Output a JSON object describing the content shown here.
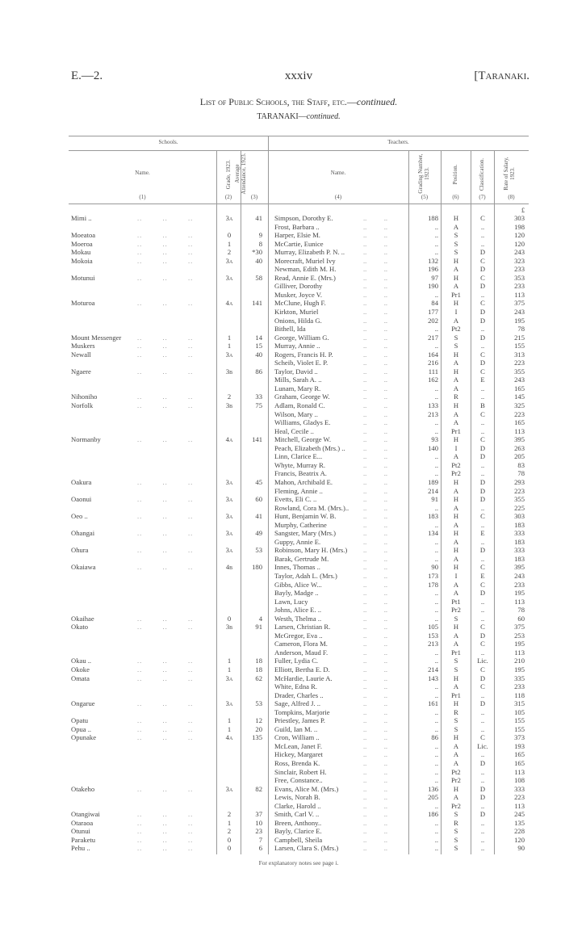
{
  "header": {
    "page_id": "E.—2.",
    "page_number": "xxxiv",
    "section": "[Taranaki."
  },
  "title": {
    "main": "List of Public Schools, the Staff, etc.—",
    "main_em": "continued.",
    "sub": "TARANAKI—",
    "sub_em": "continued."
  },
  "columns": {
    "schools_group": "Schools.",
    "teachers_group": "Teachers.",
    "school_name": "Name.",
    "grade": "Grade, 1923.",
    "attendance": "Average Attendance, 1923.",
    "teacher_name": "Name.",
    "grading": "Grading Number, 1923.",
    "position": "Position.",
    "classification": "Classification.",
    "salary": "Rate of Salary, 1923.",
    "nums": [
      "(1)",
      "(2)",
      "(3)",
      "(4)",
      "(5)",
      "(6)",
      "(7)",
      "(8)"
    ],
    "currency": "£"
  },
  "rows": [
    [
      "Mimi ..",
      "3A",
      "41",
      "Simpson, Dorothy E.",
      "188",
      "H",
      "C",
      "303"
    ],
    [
      "",
      "",
      "",
      "Frost, Barbara ..",
      "..",
      "A",
      "..",
      "198"
    ],
    [
      "Moeatoa",
      "0",
      "9",
      "Harper, Elsie M.",
      "..",
      "S",
      "..",
      "120"
    ],
    [
      "Moeroa",
      "1",
      "8",
      "McCartie, Eunice",
      "..",
      "S",
      "..",
      "120"
    ],
    [
      "Mokau",
      "2",
      "*30",
      "Murray, Elizabeth P. N. ..",
      "..",
      "S",
      "D",
      "243"
    ],
    [
      "Mokoia",
      "3A",
      "40",
      "Morecraft, Muriel Ivy",
      "132",
      "H",
      "C",
      "323"
    ],
    [
      "",
      "",
      "",
      "Newman, Edith M. H.",
      "196",
      "A",
      "D",
      "233"
    ],
    [
      "Motunui",
      "3A",
      "58",
      "Read, Annie E. (Mrs.)",
      "97",
      "H",
      "C",
      "353"
    ],
    [
      "",
      "",
      "",
      "Gilliver, Dorothy",
      "190",
      "A",
      "D",
      "233"
    ],
    [
      "",
      "",
      "",
      "Musker, Joyce V.",
      "..",
      "Pr1",
      "..",
      "113"
    ],
    [
      "Moturoa",
      "4A",
      "141",
      "McClune, Hugh F.",
      "84",
      "H",
      "C",
      "375"
    ],
    [
      "",
      "",
      "",
      "Kirkton, Muriel",
      "177",
      "I",
      "D",
      "243"
    ],
    [
      "",
      "",
      "",
      "Onions, Hilda G.",
      "202",
      "A",
      "D",
      "195"
    ],
    [
      "",
      "",
      "",
      "Bithell, Ida",
      "..",
      "Pt2",
      "..",
      "78"
    ],
    [
      "Mount Messenger",
      "1",
      "14",
      "George, William G.",
      "217",
      "S",
      "D",
      "215"
    ],
    [
      "Muskers",
      "1",
      "15",
      "Murray, Annie ..",
      "..",
      "S",
      "..",
      "155"
    ],
    [
      "Newall",
      "3A",
      "40",
      "Rogers, Francis H. P.",
      "164",
      "H",
      "C",
      "313"
    ],
    [
      "",
      "",
      "",
      "Scheib, Violet E. P.",
      "216",
      "A",
      "D",
      "223"
    ],
    [
      "Ngaere",
      "3B",
      "86",
      "Taylor, David ..",
      "111",
      "H",
      "C",
      "355"
    ],
    [
      "",
      "",
      "",
      "Mills, Sarah A. ..",
      "162",
      "A",
      "E",
      "243"
    ],
    [
      "",
      "",
      "",
      "Lunam, Mary R.",
      "..",
      "A",
      "..",
      "165"
    ],
    [
      "Nihoniho",
      "2",
      "33",
      "Graham, George W.",
      "..",
      "R",
      "..",
      "145"
    ],
    [
      "Norfolk",
      "3B",
      "75",
      "Adlam, Ronald C.",
      "133",
      "H",
      "B",
      "325"
    ],
    [
      "",
      "",
      "",
      "Wilson, Mary ..",
      "213",
      "A",
      "C",
      "223"
    ],
    [
      "",
      "",
      "",
      "Williams, Gladys E.",
      "..",
      "A",
      "..",
      "165"
    ],
    [
      "",
      "",
      "",
      "Heal, Cecile ..",
      "..",
      "Pr1",
      "..",
      "113"
    ],
    [
      "Normanby",
      "4A",
      "141",
      "Mitchell, George W.",
      "93",
      "H",
      "C",
      "395"
    ],
    [
      "",
      "",
      "",
      "Peach, Elizabeth (Mrs.) ..",
      "140",
      "I",
      "D",
      "263"
    ],
    [
      "",
      "",
      "",
      "Linn, Clarice E...",
      "..",
      "A",
      "D",
      "205"
    ],
    [
      "",
      "",
      "",
      "Whyte, Murray R.",
      "..",
      "Pt2",
      "..",
      "83"
    ],
    [
      "",
      "",
      "",
      "Francis, Beatrix A.",
      "..",
      "Pr2",
      "..",
      "78"
    ],
    [
      "Oakura",
      "3A",
      "45",
      "Mahon, Archibald E.",
      "189",
      "H",
      "D",
      "293"
    ],
    [
      "",
      "",
      "",
      "Fleming, Annie ..",
      "214",
      "A",
      "D",
      "223"
    ],
    [
      "Oaonui",
      "3A",
      "60",
      "Evetts, Eli C. ..",
      "91",
      "H",
      "D",
      "355"
    ],
    [
      "",
      "",
      "",
      "Rowland, Cora M. (Mrs.)..",
      "..",
      "A",
      "..",
      "225"
    ],
    [
      "Oeo ..",
      "3A",
      "41",
      "Hunt, Benjamin W. B.",
      "183",
      "H",
      "C",
      "303"
    ],
    [
      "",
      "",
      "",
      "Murphy, Catherine",
      "..",
      "A",
      "..",
      "183"
    ],
    [
      "Ohangai",
      "3A",
      "49",
      "Sangster, Mary (Mrs.)",
      "134",
      "H",
      "E",
      "333"
    ],
    [
      "",
      "",
      "",
      "Guppy, Annie E.",
      "..",
      "A",
      "..",
      "183"
    ],
    [
      "Ohura",
      "3A",
      "53",
      "Robinson, Mary H. (Mrs.)",
      "..",
      "H",
      "D",
      "333"
    ],
    [
      "",
      "",
      "",
      "Barak, Gertrude M.",
      "..",
      "A",
      "..",
      "183"
    ],
    [
      "Okaiawa",
      "4B",
      "180",
      "Innes, Thomas ..",
      "90",
      "H",
      "C",
      "395"
    ],
    [
      "",
      "",
      "",
      "Taylor, Adah L. (Mrs.)",
      "173",
      "I",
      "E",
      "243"
    ],
    [
      "",
      "",
      "",
      "Gibbs, Alice W...",
      "178",
      "A",
      "C",
      "233"
    ],
    [
      "",
      "",
      "",
      "Bayly, Madge ..",
      "..",
      "A",
      "D",
      "195"
    ],
    [
      "",
      "",
      "",
      "Lawn, Lucy",
      "..",
      "Pt1",
      "..",
      "113"
    ],
    [
      "",
      "",
      "",
      "Johns, Alice E. ..",
      "..",
      "Pr2",
      "..",
      "78"
    ],
    [
      "Okaihae",
      "0",
      "4",
      "Westh, Thelma ..",
      "..",
      "S",
      "..",
      "60"
    ],
    [
      "Okato",
      "3B",
      "91",
      "Larsen, Christian R.",
      "105",
      "H",
      "C",
      "375"
    ],
    [
      "",
      "",
      "",
      "McGregor, Eva ..",
      "153",
      "A",
      "D",
      "253"
    ],
    [
      "",
      "",
      "",
      "Cameron, Flora M.",
      "213",
      "A",
      "C",
      "195"
    ],
    [
      "",
      "",
      "",
      "Anderson, Maud F.",
      "..",
      "Pr1",
      "..",
      "113"
    ],
    [
      "Okau ..",
      "1",
      "18",
      "Fuller, Lydia C.",
      "..",
      "S",
      "Lic.",
      "210"
    ],
    [
      "Okoke",
      "1",
      "18",
      "Elliott, Bertha E. D.",
      "214",
      "S",
      "C",
      "195"
    ],
    [
      "Omata",
      "3A",
      "62",
      "McHardie, Laurie A.",
      "143",
      "H",
      "D",
      "335"
    ],
    [
      "",
      "",
      "",
      "White, Edna R.",
      "..",
      "A",
      "C",
      "233"
    ],
    [
      "",
      "",
      "",
      "Drader, Charles ..",
      "..",
      "Pr1",
      "..",
      "118"
    ],
    [
      "Ongarue",
      "3A",
      "53",
      "Sage, Alfred J. ..",
      "161",
      "H",
      "D",
      "315"
    ],
    [
      "",
      "",
      "",
      "Tompkins, Marjorie",
      "..",
      "R",
      "..",
      "105"
    ],
    [
      "Opatu",
      "1",
      "12",
      "Priestley, James P.",
      "..",
      "S",
      "..",
      "155"
    ],
    [
      "Opua ..",
      "1",
      "20",
      "Guild, Ian M. ..",
      "..",
      "S",
      "..",
      "155"
    ],
    [
      "Opunake",
      "4A",
      "135",
      "Cron, William ..",
      "86",
      "H",
      "C",
      "373"
    ],
    [
      "",
      "",
      "",
      "McLean, Janet F.",
      "..",
      "A",
      "Lic.",
      "193"
    ],
    [
      "",
      "",
      "",
      "Hickey, Margaret",
      "..",
      "A",
      "..",
      "165"
    ],
    [
      "",
      "",
      "",
      "Ross, Brenda K.",
      "..",
      "A",
      "D",
      "165"
    ],
    [
      "",
      "",
      "",
      "Sinclair, Robert H.",
      "..",
      "Pt2",
      "..",
      "113"
    ],
    [
      "",
      "",
      "",
      "Free, Constance..",
      "..",
      "Pr2",
      "..",
      "108"
    ],
    [
      "Otakeho",
      "3A",
      "82",
      "Evans, Alice M. (Mrs.)",
      "136",
      "H",
      "D",
      "333"
    ],
    [
      "",
      "",
      "",
      "Lewis, Norah B.",
      "205",
      "A",
      "D",
      "223"
    ],
    [
      "",
      "",
      "",
      "Clarke, Harold ..",
      "..",
      "Pr2",
      "..",
      "113"
    ],
    [
      "Otangiwai",
      "2",
      "37",
      "Smith, Carl V. ..",
      "186",
      "S",
      "D",
      "245"
    ],
    [
      "Otaraoa",
      "1",
      "10",
      "Breen, Anthony..",
      "..",
      "R",
      "..",
      "135"
    ],
    [
      "Otunui",
      "2",
      "23",
      "Bayly, Clarice E.",
      "..",
      "S",
      "..",
      "228"
    ],
    [
      "Paraketu",
      "0",
      "7",
      "Campbell, Sheila",
      "..",
      "S",
      "..",
      "120"
    ],
    [
      "Pehu ..",
      "0",
      "6",
      "Larsen, Clara S. (Mrs.)",
      "..",
      "S",
      "..",
      "90"
    ]
  ],
  "footer": "For explanatory notes see page i."
}
